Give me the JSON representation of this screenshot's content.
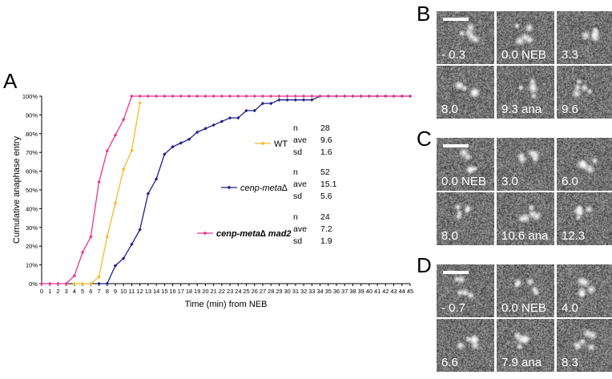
{
  "panels": {
    "A": "A",
    "B": "B",
    "C": "C",
    "D": "D"
  },
  "chart_data": {
    "type": "line",
    "xlabel": "Time (min) from NEB",
    "ylabel": "Cumulative anaphase entry",
    "xlim": [
      0,
      45
    ],
    "ylim": [
      0,
      100
    ],
    "x_ticks": [
      "0",
      "1",
      "2",
      "3",
      "4",
      "5",
      "6",
      "7",
      "8",
      "9",
      "10",
      "11",
      "12",
      "13",
      "14",
      "15",
      "16",
      "17",
      "18",
      "19",
      "20",
      "21",
      "22",
      "23",
      "24",
      "25",
      "26",
      "27",
      "28",
      "29",
      "30",
      "31",
      "32",
      "33",
      "34",
      "35",
      "36",
      "37",
      "38",
      "39",
      "40",
      "41",
      "42",
      "43",
      "44",
      "45"
    ],
    "y_ticks": [
      "0%",
      "10%",
      "20%",
      "30%",
      "40%",
      "50%",
      "60%",
      "70%",
      "80%",
      "90%",
      "100%"
    ],
    "series": [
      {
        "name": "WT",
        "color": "#f5b923",
        "marker": "diamond",
        "x": [
          4,
          5,
          6,
          7,
          8,
          9,
          10,
          11,
          12
        ],
        "y": [
          0,
          0,
          0,
          3.6,
          25,
          43,
          61,
          71,
          96.4
        ],
        "stats": {
          "n": "28",
          "ave": "9.6",
          "sd": "1.6"
        }
      },
      {
        "name": "cenp-meta∆",
        "color": "#1f1f8a",
        "marker": "diamond",
        "x": [
          7,
          8,
          9,
          10,
          11,
          12,
          13,
          14,
          15,
          16,
          17,
          18,
          19,
          20,
          21,
          22,
          23,
          24,
          25,
          26,
          27,
          28,
          29,
          30,
          31,
          32,
          33,
          34,
          35,
          36,
          37,
          38,
          39,
          40,
          41,
          42,
          43,
          44,
          45
        ],
        "y": [
          0,
          0,
          9.6,
          13.5,
          21,
          28.8,
          48,
          55.8,
          69,
          73,
          75,
          77,
          80.8,
          82.7,
          84.6,
          86.5,
          88.4,
          88.4,
          92.3,
          92.3,
          96.1,
          96.1,
          98,
          98,
          98,
          98,
          98,
          100,
          100,
          100,
          100,
          100,
          100,
          100,
          100,
          100,
          100,
          100,
          100
        ],
        "stats": {
          "n": "52",
          "ave": "15.1",
          "sd": "5.6"
        }
      },
      {
        "name": "cenp-meta∆ mad2",
        "color": "#e8358f",
        "marker": "diamond",
        "x": [
          0,
          1,
          2,
          3,
          4,
          5,
          6,
          7,
          8,
          9,
          10,
          11,
          12,
          13,
          14,
          15,
          16,
          17,
          18,
          19,
          20,
          21,
          22,
          23,
          24,
          25,
          26,
          27,
          28,
          29,
          30,
          31,
          32,
          33,
          34,
          35,
          36,
          37,
          38,
          39,
          40,
          41,
          42,
          43,
          44,
          45
        ],
        "y": [
          0,
          0,
          0,
          0,
          4.2,
          16.7,
          25,
          54.2,
          70.8,
          79.2,
          87.5,
          100,
          100,
          100,
          100,
          100,
          100,
          100,
          100,
          100,
          100,
          100,
          100,
          100,
          100,
          100,
          100,
          100,
          100,
          100,
          100,
          100,
          100,
          100,
          100,
          100,
          100,
          100,
          100,
          100,
          100,
          100,
          100,
          100,
          100,
          100
        ],
        "stats": {
          "n": "24",
          "ave": "7.2",
          "sd": "1.9"
        }
      }
    ],
    "stat_labels": {
      "n": "n",
      "ave": "ave",
      "sd": "sd"
    }
  },
  "micrographs": {
    "B": [
      "- 0.3",
      "0.0 NEB",
      "3.3",
      "8.0",
      "9.3 ana",
      "9.6"
    ],
    "C": [
      "0.0 NEB",
      "3.0",
      "6.0",
      "8.0",
      "10.6 ana",
      "12.3"
    ],
    "D": [
      "- 0.7",
      "0.0 NEB",
      "4.0",
      "6.6",
      "7.9 ana",
      "8.3"
    ]
  }
}
